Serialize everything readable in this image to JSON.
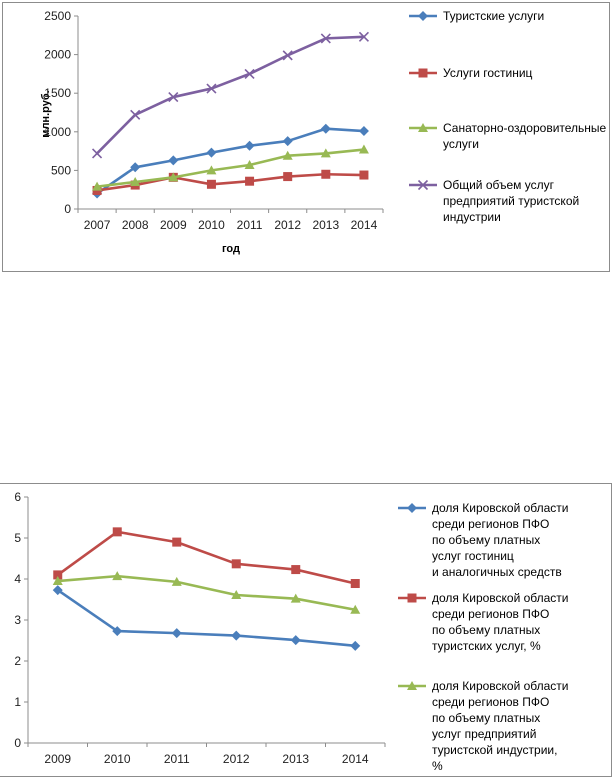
{
  "chart_data": [
    {
      "type": "line",
      "title": "",
      "xlabel": "год",
      "ylabel": "млн.руб.",
      "categories": [
        "2007",
        "2008",
        "2009",
        "2010",
        "2011",
        "2012",
        "2013",
        "2014"
      ],
      "ylim": [
        0,
        2500
      ],
      "yticks": [
        "0",
        "500",
        "1000",
        "1500",
        "2000",
        "2500"
      ],
      "grid": false,
      "legend_position": "right",
      "series": [
        {
          "name": "Туристские услуги",
          "color": "#4a7ebb",
          "marker": "diamond",
          "values": [
            200,
            540,
            630,
            730,
            820,
            880,
            1040,
            1010
          ]
        },
        {
          "name": "Услуги гостиниц",
          "color": "#be4b48",
          "marker": "square",
          "values": [
            240,
            310,
            410,
            320,
            360,
            420,
            450,
            440
          ]
        },
        {
          "name": "Санаторно-оздоровительные услуги",
          "color": "#98b954",
          "marker": "triangle",
          "values": [
            290,
            350,
            410,
            500,
            570,
            690,
            720,
            770
          ]
        },
        {
          "name": "Общий объем услуг предприятий туристской индустрии",
          "color": "#7d60a0",
          "marker": "x",
          "values": [
            720,
            1220,
            1450,
            1560,
            1750,
            1990,
            2210,
            2230
          ]
        }
      ]
    },
    {
      "type": "line",
      "title": "",
      "xlabel": "",
      "ylabel": "",
      "categories": [
        "2009",
        "2010",
        "2011",
        "2012",
        "2013",
        "2014"
      ],
      "ylim": [
        0,
        6
      ],
      "yticks": [
        "0",
        "1",
        "2",
        "3",
        "4",
        "5",
        "6"
      ],
      "grid": false,
      "legend_position": "right",
      "series": [
        {
          "name": "доля Кировской области среди регионов ПФО по объему платных услуг гостиниц и аналогичных средств размещения, %",
          "color": "#4a7ebb",
          "marker": "diamond",
          "values": [
            3.73,
            2.73,
            2.68,
            2.62,
            2.51,
            2.37
          ]
        },
        {
          "name": "доля Кировской области среди регионов ПФО по объему платных туристских услуг, %",
          "color": "#be4b48",
          "marker": "square",
          "values": [
            4.1,
            5.15,
            4.9,
            4.37,
            4.23,
            3.89
          ]
        },
        {
          "name": "доля Кировской области среди регионов ПФО по объему платных услуг предприятий туристской индустрии, %",
          "color": "#98b954",
          "marker": "triangle",
          "values": [
            3.95,
            4.07,
            3.93,
            3.61,
            3.52,
            3.25
          ]
        }
      ]
    }
  ]
}
